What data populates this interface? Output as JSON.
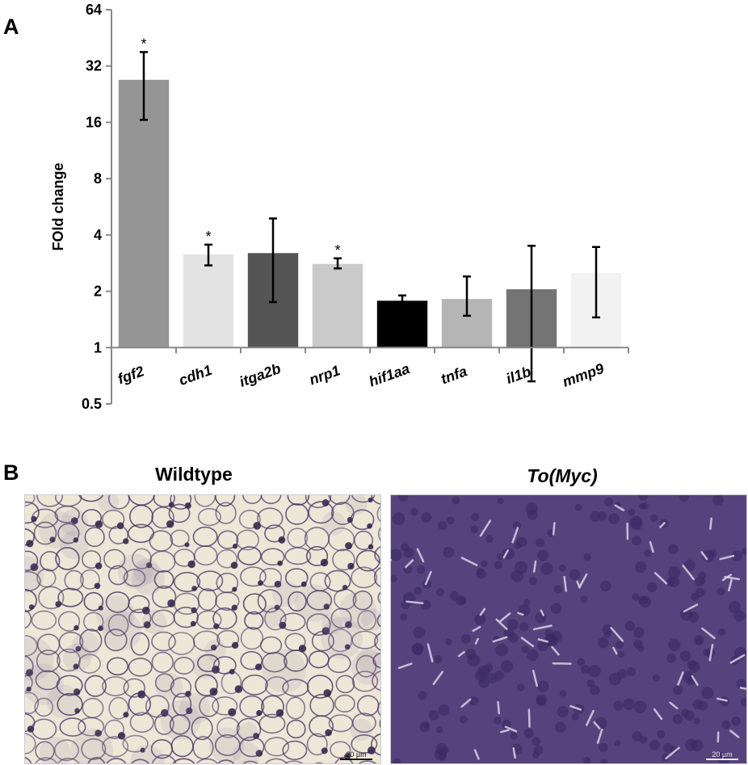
{
  "panel_a_label": "A",
  "panel_b_label": "B",
  "chart_data": {
    "type": "bar",
    "ylabel": "FOld change",
    "yscale": "log2",
    "ylim": [
      0.5,
      64
    ],
    "yticks": [
      0.5,
      1,
      2,
      4,
      8,
      16,
      32,
      64
    ],
    "baseline": 1,
    "categories": [
      "fgf2",
      "cdh1",
      "itga2b",
      "nrp1",
      "hif1aa",
      "tnfa",
      "il1b",
      "mmp9"
    ],
    "values": [
      27,
      3.15,
      3.2,
      2.8,
      1.78,
      1.82,
      2.05,
      2.5
    ],
    "error_low": [
      16.5,
      2.75,
      1.75,
      2.65,
      1.68,
      1.48,
      0.66,
      1.45
    ],
    "error_high": [
      38,
      3.55,
      4.9,
      3.0,
      1.9,
      2.4,
      3.5,
      3.45
    ],
    "significance": [
      "*",
      "*",
      "",
      "*",
      "",
      "",
      "",
      ""
    ],
    "bar_colors": [
      "#959595",
      "#e3e3e3",
      "#545454",
      "#cacaca",
      "#000000",
      "#b5b5b5",
      "#747474",
      "#f2f2f2"
    ]
  },
  "panel_b": {
    "images": [
      {
        "title": "Wildtype",
        "scale_label": "20 µm",
        "base_color": "#ece7d7",
        "stain_color": "#4a3262"
      },
      {
        "title": "To(Myc)",
        "scale_label": "20 µm",
        "base_color": "#56437e",
        "stain_color": "#d9d3e6"
      }
    ]
  }
}
